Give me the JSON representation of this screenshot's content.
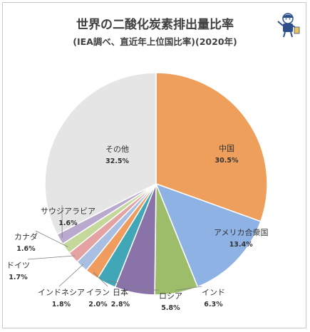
{
  "chart_data": {
    "type": "pie",
    "title": "世界の二酸化炭素排出量比率",
    "subtitle": "(IEA調べ、直近年上位国比率)(2020年)",
    "slices": [
      {
        "name": "中国",
        "value": 30.5,
        "label": "30.5%",
        "color": "#ee9f5c"
      },
      {
        "name": "アメリカ合衆国",
        "value": 13.4,
        "label": "13.4%",
        "color": "#8fb2e4"
      },
      {
        "name": "インド",
        "value": 6.3,
        "label": "6.3%",
        "color": "#9dbd6b"
      },
      {
        "name": "ロシア",
        "value": 5.8,
        "label": "5.8%",
        "color": "#8a73a8"
      },
      {
        "name": "日本",
        "value": 2.8,
        "label": "2.8%",
        "color": "#41a6b6"
      },
      {
        "name": "イラン",
        "value": 2.0,
        "label": "2.0%",
        "color": "#ef9c5e"
      },
      {
        "name": "インドネシア",
        "value": 1.8,
        "label": "1.8%",
        "color": "#a9bfe2"
      },
      {
        "name": "ドイツ",
        "value": 1.7,
        "label": "1.7%",
        "color": "#e4a3a2"
      },
      {
        "name": "カナダ",
        "value": 1.6,
        "label": "1.6%",
        "color": "#c3d89a"
      },
      {
        "name": "サウジアラビア",
        "value": 1.6,
        "label": "1.6%",
        "color": "#b9a9cf"
      },
      {
        "name": "その他",
        "value": 32.5,
        "label": "32.5%",
        "color": "#e5e5e5"
      }
    ]
  }
}
